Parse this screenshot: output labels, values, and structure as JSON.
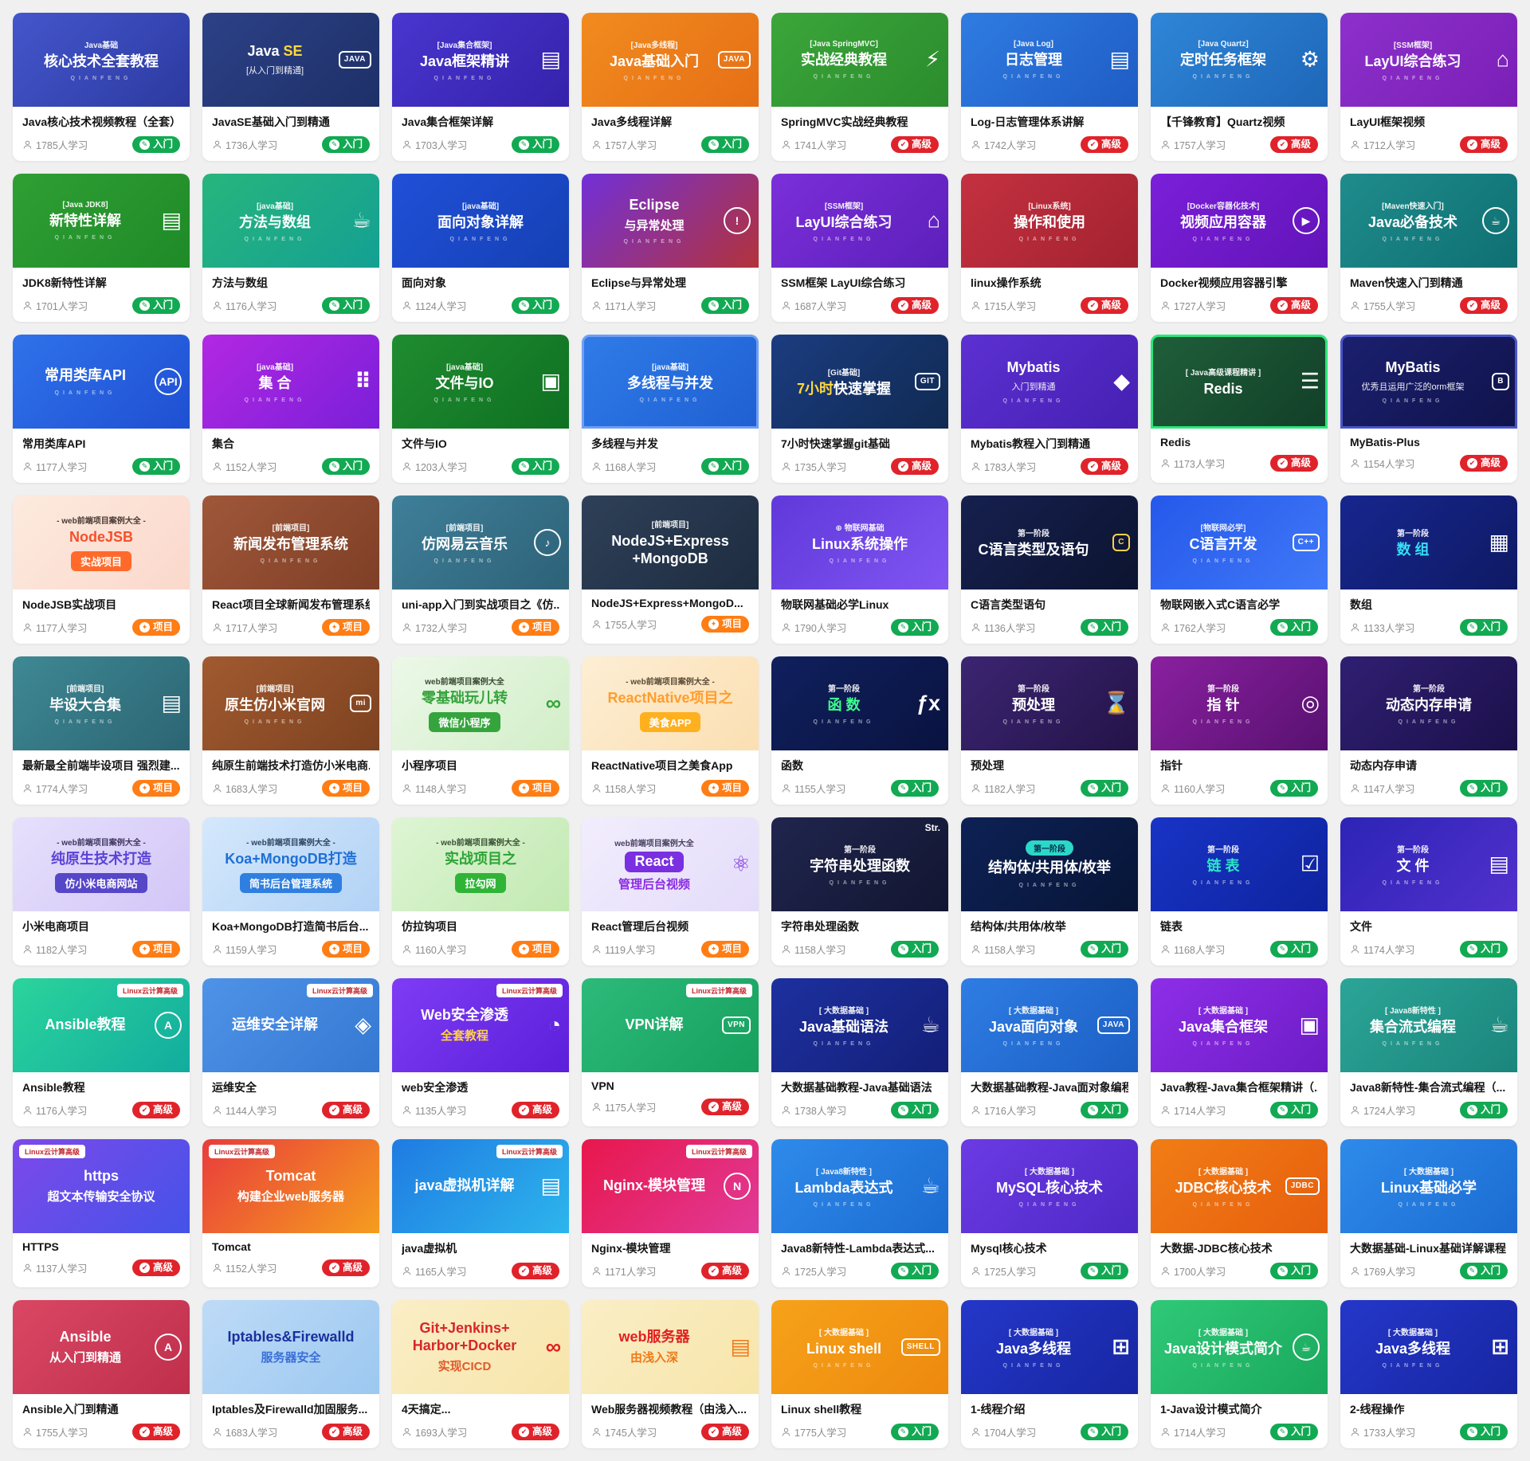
{
  "brand_text": "QIANFENG",
  "badges": {
    "入门": {
      "bg": "#12A953",
      "icon": "✎"
    },
    "高级": {
      "bg": "#E0232B",
      "icon": "✔"
    },
    "项目": {
      "bg": "#FF7D15",
      "icon": "✦"
    }
  },
  "cards": [
    {
      "th": {
        "bg": "135deg,#4456cc,#2c3aa0",
        "tag": "Java基础",
        "l1": "核心技术全套教程",
        "brand": 1
      },
      "t": "Java核心技术视频教程（全套）",
      "s": "1785人学习",
      "b": "入门"
    },
    {
      "th": {
        "bg": "135deg,#2c4187,#1e3068",
        "l1parts": [
          {
            "t": "Java ",
            "c": "#ffffff"
          },
          {
            "t": "SE",
            "c": "#ffd83d"
          }
        ],
        "l2": "[从入门到精通]",
        "glyph": "JAVA",
        "gt": "box"
      },
      "t": "JavaSE基础入门到精通",
      "s": "1736人学习",
      "b": "入门"
    },
    {
      "th": {
        "bg": "135deg,#4836cf,#3522ab",
        "tag": "[Java集合框架]",
        "l1": "Java框架精讲",
        "brand": 1,
        "glyph": "▤"
      },
      "t": "Java集合框架详解",
      "s": "1703人学习",
      "b": "入门"
    },
    {
      "th": {
        "bg": "135deg,#f18b1f,#e66f15",
        "tag": "[Java多线程]",
        "l1": "Java基础入门",
        "brand": 1,
        "glyph": "JAVA",
        "gt": "box"
      },
      "t": "Java多线程详解",
      "s": "1757人学习",
      "b": "入门"
    },
    {
      "th": {
        "bg": "135deg,#3ba63a,#2b8c2d",
        "tag": "[Java SpringMVC]",
        "l1": "实战经典教程",
        "brand": 1,
        "glyph": "⚡"
      },
      "t": "SpringMVC实战经典教程",
      "s": "1741人学习",
      "b": "高级"
    },
    {
      "th": {
        "bg": "135deg,#2f7ce2,#1e5cc4",
        "tag": "[Java Log]",
        "l1": "日志管理",
        "brand": 1,
        "glyph": "▤"
      },
      "t": "Log-日志管理体系讲解",
      "s": "1742人学习",
      "b": "高级"
    },
    {
      "th": {
        "bg": "135deg,#2f86d8,#1e66b8",
        "tag": "[Java Quartz]",
        "l1": "定时任务框架",
        "brand": 1,
        "glyph": "⚙"
      },
      "t": "【千锋教育】Quartz视频",
      "s": "1757人学习",
      "b": "高级"
    },
    {
      "th": {
        "bg": "135deg,#8d30cc,#7a1fb6",
        "tag": "[SSM框架]",
        "l1": "LayUI综合练习",
        "brand": 1,
        "glyph": "⌂"
      },
      "t": "LayUI框架视频",
      "s": "1712人学习",
      "b": "高级"
    },
    {
      "th": {
        "bg": "135deg,#2f9f33,#1f8a28",
        "tag": "[Java JDK8]",
        "l1": "新特性详解",
        "brand": 1,
        "glyph": "▤"
      },
      "t": "JDK8新特性详解",
      "s": "1701人学习",
      "b": "入门"
    },
    {
      "th": {
        "bg": "135deg,#27b57d,#14a093",
        "tag": "[java基础]",
        "l1": "方法与数组",
        "brand": 1,
        "glyph": "☕"
      },
      "t": "方法与数组",
      "s": "1176人学习",
      "b": "入门"
    },
    {
      "th": {
        "bg": "135deg,#2050d8,#1540b4",
        "tag": "[java基础]",
        "l1": "面向对象详解",
        "brand": 1
      },
      "t": "面向对象",
      "s": "1124人学习",
      "b": "入门"
    },
    {
      "th": {
        "bg": "135deg,#7130d8,#b3333a",
        "l1": "Eclipse",
        "l2": "与异常处理",
        "l2b": 1,
        "brand": 1,
        "glyph": "!",
        "gt": "circle"
      },
      "t": "Eclipse与异常处理",
      "s": "1171人学习",
      "b": "入门"
    },
    {
      "th": {
        "bg": "135deg,#7b2fd9,#5c1fba",
        "tag": "[SSM框架]",
        "l1": "LayUI综合练习",
        "brand": 1,
        "glyph": "⌂"
      },
      "t": "SSM框架 LayUI综合练习",
      "s": "1687人学习",
      "b": "高级"
    },
    {
      "th": {
        "bg": "135deg,#c43140,#a32230",
        "tag": "[Linux系统]",
        "l1": "操作和使用",
        "brand": 1
      },
      "t": "linux操作系统",
      "s": "1715人学习",
      "b": "高级"
    },
    {
      "th": {
        "bg": "135deg,#7b1fd9,#6114b8",
        "tag": "[Docker容器化技术]",
        "l1": "视频应用容器",
        "brand": 1,
        "glyph": "▶",
        "gt": "circle"
      },
      "t": "Docker视频应用容器引擎",
      "s": "1727人学习",
      "b": "高级"
    },
    {
      "th": {
        "bg": "135deg,#1f8c8c,#0f6f72",
        "tag": "[Maven快速入门]",
        "l1": "Java必备技术",
        "brand": 1,
        "glyph": "☕",
        "gt": "circle"
      },
      "t": "Maven快速入门到精通",
      "s": "1755人学习",
      "b": "高级"
    },
    {
      "th": {
        "bg": "135deg,#2f72ea,#1f4fd2",
        "l1": "常用类库API",
        "brand": 1,
        "glyph": "API",
        "gt": "circle"
      },
      "t": "常用类库API",
      "s": "1177人学习",
      "b": "入门"
    },
    {
      "th": {
        "bg": "135deg,#b228e2,#7a1fd9",
        "tag": "[java基础]",
        "l1": "集 合",
        "brand": 1,
        "glyph": "⠿"
      },
      "t": "集合",
      "s": "1152人学习",
      "b": "入门"
    },
    {
      "th": {
        "bg": "135deg,#1f8c30,#0f7022",
        "tag": "[java基础]",
        "l1": "文件与IO",
        "brand": 1,
        "glyph": "▣"
      },
      "t": "文件与IO",
      "s": "1203人学习",
      "b": "入门"
    },
    {
      "th": {
        "bg": "135deg,#2f7ce8,#1f5fd2",
        "tag": "[java基础]",
        "l1": "多线程与并发",
        "brand": 1,
        "border": "#6f9ef5"
      },
      "t": "多线程与并发",
      "s": "1168人学习",
      "b": "入门"
    },
    {
      "th": {
        "bg": "135deg,#1b3c80,#102a52",
        "tag": "[Git基础]",
        "l1parts": [
          {
            "t": "7小时",
            "c": "#ffd83d"
          },
          {
            "t": "快速掌握",
            "c": "#ffffff"
          }
        ],
        "glyph": "GIT",
        "gt": "box"
      },
      "t": "7小时快速掌握git基础",
      "s": "1735人学习",
      "b": "高级"
    },
    {
      "th": {
        "bg": "135deg,#5c30d2,#4520b2",
        "l1": "Mybatis",
        "l2": "入门到精通",
        "brand": 1,
        "glyph": "◆"
      },
      "t": "Mybatis教程入门到精通",
      "s": "1783人学习",
      "b": "高级"
    },
    {
      "th": {
        "bg": "135deg,#1f5f3a,#123f28",
        "tag": "[ Java高级课程精讲 ]",
        "l1": "Redis",
        "glyph": "☰",
        "border": "#2ae87a"
      },
      "t": "Redis",
      "s": "1173人学习",
      "b": "高级"
    },
    {
      "th": {
        "bg": "135deg,#1b2070,#10134a",
        "l1": "MyBatis",
        "l2": "优秀且运用广泛的orm框架",
        "brand": 1,
        "glyph": "B",
        "gt": "box",
        "border": "#4a55c8"
      },
      "t": "MyBatis-Plus",
      "s": "1154人学习",
      "b": "高级"
    },
    {
      "th": {
        "bg": "135deg,#fdeade,#fbd8cc",
        "tag": "- web前端项目案例大全 -",
        "tagc": "#4a3a33",
        "l1": "NodeJSB",
        "l1c": "#f4502a",
        "l2": "实战项目",
        "l2pill": 1,
        "l2bg": "#ff6a2b"
      },
      "t": "NodeJSB实战项目",
      "s": "1177人学习",
      "b": "项目"
    },
    {
      "th": {
        "bg": "135deg,#a0573a,#7e3f26",
        "tag": "[前端项目]",
        "l1": "新闻发布管理系统",
        "brand": 1
      },
      "t": "React项目全球新闻发布管理系统",
      "s": "1717人学习",
      "b": "项目"
    },
    {
      "th": {
        "bg": "135deg,#3f7f99,#2d6278",
        "tag": "[前端项目]",
        "l1": "仿网易云音乐",
        "brand": 1,
        "glyph": "♪",
        "gt": "circle"
      },
      "t": "uni-app入门到实战项目之《仿...",
      "s": "1732人学习",
      "b": "项目"
    },
    {
      "th": {
        "bg": "135deg,#2e4058,#1e2c40",
        "tag": "[前端项目]",
        "l1": "NodeJS+Express +MongoDB"
      },
      "t": "NodeJS+Express+MongoD...",
      "s": "1755人学习",
      "b": "项目"
    },
    {
      "th": {
        "bg": "135deg,#6038da,#8055f2",
        "tag": "⊕ 物联网基础",
        "l1": "Linux系统操作",
        "brand": 1
      },
      "t": "物联网基础必学Linux",
      "s": "1790人学习",
      "b": "入门"
    },
    {
      "th": {
        "bg": "135deg,#16204e,#0c1430",
        "tag": "第一阶段",
        "l1": "C语言类型及语句",
        "glyph": "C",
        "gt": "box",
        "gc": "#ffd24a"
      },
      "t": "C语言类型语句",
      "s": "1136人学习",
      "b": "入门"
    },
    {
      "th": {
        "bg": "135deg,#2558ea,#4079f8",
        "tag": "[物联网必学]",
        "l1": "C语言开发",
        "brand": 1,
        "glyph": "C++",
        "gt": "box"
      },
      "t": "物联网嵌入式C语言必学",
      "s": "1762人学习",
      "b": "入门"
    },
    {
      "th": {
        "bg": "135deg,#17268e,#0e1a64",
        "tag": "第一阶段",
        "l1": "数 组",
        "l1c": "#35dff5",
        "glyph": "▦"
      },
      "t": "数组",
      "s": "1133人学习",
      "b": "入门"
    },
    {
      "th": {
        "bg": "135deg,#3e8894,#2c6573",
        "tag": "[前端项目]",
        "l1": "毕设大合集",
        "brand": 1,
        "glyph": "▤"
      },
      "t": "最新最全前端毕设项目 强烈建...",
      "s": "1774人学习",
      "b": "项目"
    },
    {
      "th": {
        "bg": "135deg,#a15a30,#7d4220",
        "tag": "[前端项目]",
        "l1": "原生仿小米官网",
        "brand": 1,
        "glyph": "mi",
        "gt": "box"
      },
      "t": "纯原生前端技术打造仿小米电商...",
      "s": "1683人学习",
      "b": "项目"
    },
    {
      "th": {
        "bg": "135deg,#ecf8e8,#d2eec8",
        "tag": "web前端项目案例大全",
        "tagc": "#3a4a35",
        "l1": "零基础玩儿转",
        "l1c": "#35a43c",
        "l2": "微信小程序",
        "l2pill": 1,
        "l2bg": "#35a43c",
        "glyph": "∞",
        "gc": "#35a43c"
      },
      "t": "小程序项目",
      "s": "1148人学习",
      "b": "项目"
    },
    {
      "th": {
        "bg": "135deg,#fdeed4,#fbdfb2",
        "tag": "- web前端项目案例大全 -",
        "tagc": "#5a4a35",
        "l1": "ReactNative项目之",
        "l1c": "#ff9d2e",
        "l2": "美食APP",
        "l2pill": 1,
        "l2bg": "#ffb01f"
      },
      "t": "ReactNative项目之美食App",
      "s": "1158人学习",
      "b": "项目"
    },
    {
      "th": {
        "bg": "135deg,#10205e,#0a1340",
        "tag": "第一阶段",
        "l1": "函 数",
        "l1c": "#3dff8e",
        "brand": 1,
        "glyph": "ƒx"
      },
      "t": "函数",
      "s": "1155人学习",
      "b": "入门"
    },
    {
      "th": {
        "bg": "135deg,#3c2572,#231348",
        "tag": "第一阶段",
        "l1": "预处理",
        "brand": 1,
        "glyph": "⌛"
      },
      "t": "预处理",
      "s": "1182人学习",
      "b": "入门"
    },
    {
      "th": {
        "bg": "135deg,#8a20a0,#581170",
        "tag": "第一阶段",
        "l1": "指 针",
        "brand": 1,
        "glyph": "◎"
      },
      "t": "指针",
      "s": "1160人学习",
      "b": "入门"
    },
    {
      "th": {
        "bg": "135deg,#301f72,#1c104a",
        "tag": "第一阶段",
        "l1": "动态内存申请",
        "brand": 1
      },
      "t": "动态内存申请",
      "s": "1147人学习",
      "b": "入门"
    },
    {
      "th": {
        "bg": "135deg,#e7e0fc,#d2c6f7",
        "tag": "- web前端项目案例大全 -",
        "tagc": "#3f3560",
        "l1": "纯原生技术打造",
        "l1c": "#5a43d8",
        "l2": "仿小米电商网站",
        "l2pill": 1,
        "l2bg": "#5646c8"
      },
      "t": "小米电商项目",
      "s": "1182人学习",
      "b": "项目"
    },
    {
      "th": {
        "bg": "135deg,#d4e8fc,#b2d2f5",
        "tag": "- web前端项目案例大全 -",
        "tagc": "#2f4560",
        "l1": "Koa+MongoDB打造",
        "l1c": "#1f6fd6",
        "l2": "简书后台管理系统",
        "l2pill": 1,
        "l2bg": "#2f7fe0"
      },
      "t": "Koa+MongoDB打造简书后台...",
      "s": "1159人学习",
      "b": "项目"
    },
    {
      "th": {
        "bg": "135deg,#def5d4,#c2e9b2",
        "tag": "- web前端项目案例大全 -",
        "tagc": "#3a5035",
        "l1": "实战项目之",
        "l1c": "#2ea437",
        "l2": "拉勾网",
        "l2pill": 1,
        "l2bg": "#30b437"
      },
      "t": "仿拉钩项目",
      "s": "1160人学习",
      "b": "项目"
    },
    {
      "th": {
        "bg": "135deg,#f2edfd,#e4dcfa",
        "tag": "web前端项目案例大全",
        "tagc": "#4a4060",
        "l1": "React",
        "l1pill": 1,
        "l1bg": "#7a2fe0",
        "l2": "管理后台视频",
        "l2c": "#8a2be2",
        "l2b": 1,
        "glyph": "⚛",
        "gc": "#7a2be0"
      },
      "t": "React管理后台视频",
      "s": "1119人学习",
      "b": "项目"
    },
    {
      "th": {
        "bg": "135deg,#20254e,#121631",
        "tag": "第一阶段",
        "l1": "字符串处理函数",
        "brand": 1,
        "corner": "Str."
      },
      "t": "字符串处理函数",
      "s": "1158人学习",
      "b": "入门"
    },
    {
      "th": {
        "bg": "135deg,#0d2155,#071536",
        "tag": "第一阶段",
        "tagbg": "#2bd8c8",
        "tagc": "#0a2a4a",
        "l1": "结构体/共用体/枚举",
        "brand": 1
      },
      "t": "结构体/共用体/枚举",
      "s": "1158人学习",
      "b": "入门"
    },
    {
      "th": {
        "bg": "135deg,#1834c6,#0e239e",
        "tag": "第一阶段",
        "l1": "链 表",
        "l1c": "#2ee6c8",
        "brand": 1,
        "glyph": "☑"
      },
      "t": "链表",
      "s": "1168人学习",
      "b": "入门"
    },
    {
      "th": {
        "bg": "135deg,#2c24b6,#5230cc",
        "tag": "第一阶段",
        "l1": "文 件",
        "brand": 1,
        "glyph": "▤"
      },
      "t": "文件",
      "s": "1174人学习",
      "b": "入门"
    },
    {
      "th": {
        "bg": "135deg,#2bd49c,#12ac9e",
        "tag": "Linux云计算高级",
        "tagcorner": "tr",
        "l1": "Ansible教程",
        "glyph": "A",
        "gt": "circle"
      },
      "t": "Ansible教程",
      "s": "1176人学习",
      "b": "高级"
    },
    {
      "th": {
        "bg": "135deg,#4f93e8,#3478d2",
        "tag": "Linux云计算高级",
        "tagcorner": "tr",
        "l1": "运维安全详解",
        "glyph": "◈"
      },
      "t": "运维安全",
      "s": "1144人学习",
      "b": "高级"
    },
    {
      "th": {
        "bg": "135deg,#7e3cf4,#5c1fda",
        "tag": "Linux云计算高级",
        "tagcorner": "tr",
        "l1": "Web安全渗透",
        "l2": "全套教程",
        "l2c": "#ffd24a",
        "l2b": 1,
        "glyph": "◔"
      },
      "t": "web安全渗透",
      "s": "1135人学习",
      "b": "高级"
    },
    {
      "th": {
        "bg": "135deg,#2cba7a,#17a05e",
        "tag": "Linux云计算高级",
        "tagcorner": "tr",
        "l1": "VPN详解",
        "glyph": "VPN",
        "gt": "box"
      },
      "t": "VPN",
      "s": "1175人学习",
      "b": "高级"
    },
    {
      "th": {
        "bg": "135deg,#1d309f,#131f78",
        "tag": "[ 大数据基础 ]",
        "l1": "Java基础语法",
        "brand": 1,
        "glyph": "☕"
      },
      "t": "大数据基础教程-Java基础语法",
      "s": "1738人学习",
      "b": "入门"
    },
    {
      "th": {
        "bg": "135deg,#2e7de4,#1c5fc4",
        "tag": "[ 大数据基础 ]",
        "l1": "Java面向对象",
        "brand": 1,
        "glyph": "JAVA",
        "gt": "box"
      },
      "t": "大数据基础教程-Java面对象编程",
      "s": "1716人学习",
      "b": "入门"
    },
    {
      "th": {
        "bg": "135deg,#8e2ee8,#6c1cc6",
        "tag": "[ 大数据基础 ]",
        "l1": "Java集合框架",
        "brand": 1,
        "glyph": "▣"
      },
      "t": "Java教程-Java集合框架精讲（...",
      "s": "1714人学习",
      "b": "入门"
    },
    {
      "th": {
        "bg": "135deg,#2ba597,#1b857c",
        "tag": "[ Java8新特性 ]",
        "l1": "集合流式编程",
        "brand": 1,
        "glyph": "☕"
      },
      "t": "Java8新特性-集合流式编程（...",
      "s": "1724人学习",
      "b": "入门"
    },
    {
      "th": {
        "bg": "135deg,#7d49ea,#4453e8",
        "tag": "Linux云计算高级",
        "tagcorner": "tl",
        "l1": "https",
        "l2": "超文本传输安全协议",
        "l2b": 1
      },
      "t": "HTTPS",
      "s": "1137人学习",
      "b": "高级"
    },
    {
      "th": {
        "bg": "135deg,#e93c3c,#f59d1e",
        "tag": "Linux云计算高级",
        "tagcorner": "tl",
        "l1": "Tomcat",
        "l2": "构建企业web服务器",
        "l2b": 1
      },
      "t": "Tomcat",
      "s": "1152人学习",
      "b": "高级"
    },
    {
      "th": {
        "bg": "135deg,#1f7be2,#2db5ec",
        "tag": "Linux云计算高级",
        "tagcorner": "tr",
        "l1": "java虚拟机详解",
        "glyph": "▤"
      },
      "t": "java虚拟机",
      "s": "1165人学习",
      "b": "高级"
    },
    {
      "th": {
        "bg": "135deg,#e8174c,#e13a98",
        "tag": "Linux云计算高级",
        "tagcorner": "tr",
        "l1": "Nginx-模块管理",
        "glyph": "N",
        "gt": "circle"
      },
      "t": "Nginx-模块管理",
      "s": "1171人学习",
      "b": "高级"
    },
    {
      "th": {
        "bg": "135deg,#2e8bea,#1c6cd2",
        "tag": "[ Java8新特性 ]",
        "l1": "Lambda表达式",
        "brand": 1,
        "glyph": "☕"
      },
      "t": "Java8新特性-Lambda表达式...",
      "s": "1725人学习",
      "b": "入门"
    },
    {
      "th": {
        "bg": "135deg,#6b3be4,#4e28c6",
        "tag": "[ 大数据基础 ]",
        "l1": "MySQL核心技术",
        "brand": 1
      },
      "t": "Mysql核心技术",
      "s": "1725人学习",
      "b": "入门"
    },
    {
      "th": {
        "bg": "135deg,#f17d15,#e75f0e",
        "tag": "[ 大数据基础 ]",
        "l1": "JDBC核心技术",
        "brand": 1,
        "glyph": "JDBC",
        "gt": "box"
      },
      "t": "大数据-JDBC核心技术",
      "s": "1700人学习",
      "b": "入门"
    },
    {
      "th": {
        "bg": "135deg,#2e8bea,#1c6cd2",
        "tag": "[ 大数据基础 ]",
        "l1": "Linux基础必学",
        "brand": 1
      },
      "t": "大数据基础-Linux基础详解课程",
      "s": "1769人学习",
      "b": "入门"
    },
    {
      "th": {
        "bg": "135deg,#d94763,#bf2f4c",
        "l1": "Ansible",
        "l2": "从入门到精通",
        "l2b": 1,
        "glyph": "A",
        "gt": "circle"
      },
      "t": "Ansible入门到精通",
      "s": "1755人学习",
      "b": "高级"
    },
    {
      "th": {
        "bg": "135deg,#bedbf7,#9cc8f0",
        "l1": "Iptables&Firewalld",
        "l1c": "#1b2f9e",
        "l2": "服务器安全",
        "l2c": "#3a6fd8",
        "l2b": 1
      },
      "t": "Iptables及Firewalld加固服务...",
      "s": "1683人学习",
      "b": "高级"
    },
    {
      "th": {
        "bg": "135deg,#faeec6,#f7e5aa",
        "l1": "Git+Jenkins+ Harbor+Docker",
        "l1c": "#d8262a",
        "l2": "实现CICD",
        "l2c": "#e05a2a",
        "l2b": 1,
        "glyph": "∞",
        "gc": "#e02020"
      },
      "t": "4天搞定...",
      "s": "1693人学习",
      "b": "高级"
    },
    {
      "th": {
        "bg": "135deg,#faeec6,#f7e5aa",
        "l1": "web服务器",
        "l1c": "#e02020",
        "l2": "由浅入深",
        "l2c": "#f07818",
        "l2b": 1,
        "glyph": "▤",
        "gc": "#f07818"
      },
      "t": "Web服务器视频教程（由浅入...",
      "s": "1745人学习",
      "b": "高级"
    },
    {
      "th": {
        "bg": "135deg,#f6a21a,#ee890e",
        "tag": "[ 大数据基础 ]",
        "l1": "Linux shell",
        "brand": 1,
        "glyph": "SHELL",
        "gt": "box"
      },
      "t": "Linux shell教程",
      "s": "1775人学习",
      "b": "入门"
    },
    {
      "th": {
        "bg": "135deg,#2437c9,#1726a2",
        "tag": "[ 大数据基础 ]",
        "l1": "Java多线程",
        "brand": 1,
        "glyph": "⊞"
      },
      "t": "1-线程介绍",
      "s": "1704人学习",
      "b": "入门"
    },
    {
      "th": {
        "bg": "135deg,#2fc978,#1aa85c",
        "tag": "[ 大数据基础 ]",
        "l1": "Java设计模式简介",
        "brand": 1,
        "glyph": "☕",
        "gt": "circle"
      },
      "t": "1-Java设计模式简介",
      "s": "1714人学习",
      "b": "入门"
    },
    {
      "th": {
        "bg": "135deg,#2437c9,#1726a2",
        "tag": "[ 大数据基础 ]",
        "l1": "Java多线程",
        "brand": 1,
        "glyph": "⊞"
      },
      "t": "2-线程操作",
      "s": "1733人学习",
      "b": "入门"
    }
  ]
}
